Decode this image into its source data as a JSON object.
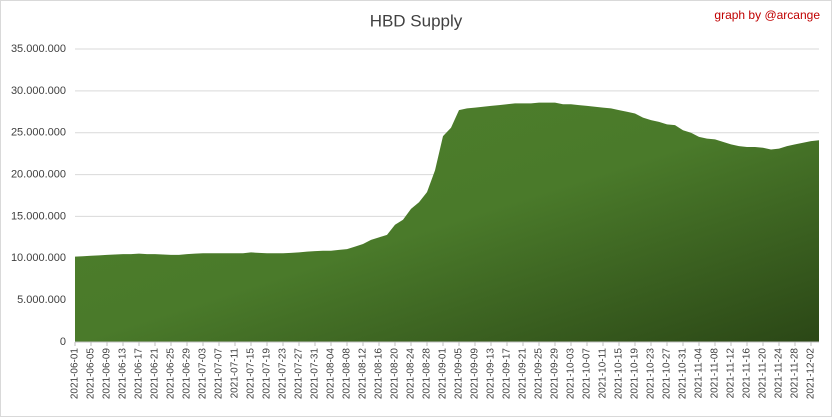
{
  "chart_data": {
    "type": "area",
    "title": "HBD Supply",
    "annotation": "graph by @arcange",
    "color": "#4a7a2a",
    "grid": true,
    "ylim": [
      0,
      35000000
    ],
    "yticks": [
      0,
      {
        "value": 5000000,
        "label": "5.000.000"
      },
      {
        "value": 10000000,
        "label": "10.000.000"
      },
      {
        "value": 15000000,
        "label": "15.000.000"
      },
      {
        "value": 20000000,
        "label": "20.000.000"
      },
      {
        "value": 25000000,
        "label": "25.000.000"
      },
      {
        "value": 30000000,
        "label": "30.000.000"
      },
      {
        "value": 35000000,
        "label": "35.000.000"
      }
    ],
    "categories": [
      "2021-06-01",
      null,
      "2021-06-05",
      null,
      "2021-06-09",
      null,
      "2021-06-13",
      null,
      "2021-06-17",
      null,
      "2021-06-21",
      null,
      "2021-06-25",
      null,
      "2021-06-29",
      null,
      "2021-07-03",
      null,
      "2021-07-07",
      null,
      "2021-07-11",
      null,
      "2021-07-15",
      null,
      "2021-07-19",
      null,
      "2021-07-23",
      null,
      "2021-07-27",
      null,
      "2021-07-31",
      null,
      "2021-08-04",
      null,
      "2021-08-08",
      null,
      "2021-08-12",
      null,
      "2021-08-16",
      null,
      "2021-08-20",
      null,
      "2021-08-24",
      null,
      "2021-08-28",
      null,
      "2021-09-01",
      null,
      "2021-09-05",
      null,
      "2021-09-09",
      null,
      "2021-09-13",
      null,
      "2021-09-17",
      null,
      "2021-09-21",
      null,
      "2021-09-25",
      null,
      "2021-09-29",
      null,
      "2021-10-03",
      null,
      "2021-10-07",
      null,
      "2021-10-11",
      null,
      "2021-10-15",
      null,
      "2021-10-19",
      null,
      "2021-10-23",
      null,
      "2021-10-27",
      null,
      "2021-10-31",
      null,
      "2021-11-04",
      null,
      "2021-11-08",
      null,
      "2021-11-12",
      null,
      "2021-11-16",
      null,
      "2021-11-20",
      null,
      "2021-11-24",
      null,
      "2021-11-28",
      null,
      "2021-12-02",
      null
    ],
    "values": [
      10200000,
      10250000,
      10300000,
      10350000,
      10400000,
      10450000,
      10500000,
      10500000,
      10550000,
      10500000,
      10500000,
      10450000,
      10400000,
      10400000,
      10500000,
      10550000,
      10600000,
      10600000,
      10600000,
      10600000,
      10600000,
      10600000,
      10700000,
      10650000,
      10600000,
      10600000,
      10600000,
      10650000,
      10700000,
      10800000,
      10850000,
      10900000,
      10900000,
      11000000,
      11100000,
      11400000,
      11700000,
      12200000,
      12500000,
      12800000,
      14000000,
      14600000,
      15900000,
      16700000,
      17900000,
      20500000,
      24600000,
      25600000,
      27700000,
      27900000,
      28000000,
      28100000,
      28200000,
      28300000,
      28400000,
      28500000,
      28500000,
      28500000,
      28600000,
      28600000,
      28600000,
      28400000,
      28400000,
      28300000,
      28200000,
      28100000,
      28000000,
      27900000,
      27700000,
      27500000,
      27300000,
      26800000,
      26500000,
      26300000,
      26000000,
      25900000,
      25300000,
      25000000,
      24500000,
      24300000,
      24200000,
      23900000,
      23600000,
      23400000,
      23300000,
      23300000,
      23200000,
      23000000,
      23100000,
      23400000,
      23600000,
      23800000,
      24000000,
      24100000
    ]
  }
}
